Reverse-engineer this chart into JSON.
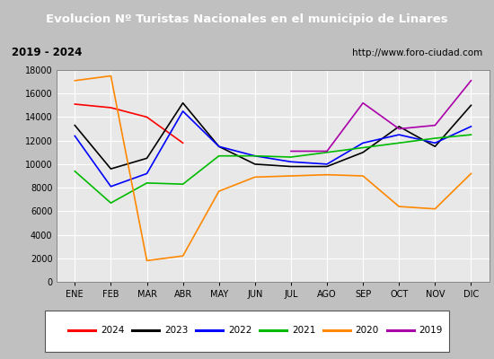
{
  "title": "Evolucion Nº Turistas Nacionales en el municipio de Linares",
  "subtitle_left": "2019 - 2024",
  "subtitle_right": "http://www.foro-ciudad.com",
  "months": [
    "ENE",
    "FEB",
    "MAR",
    "ABR",
    "MAY",
    "JUN",
    "JUL",
    "AGO",
    "SEP",
    "OCT",
    "NOV",
    "DIC"
  ],
  "series": {
    "2024": [
      15100,
      14800,
      14000,
      11800,
      null,
      null,
      null,
      null,
      null,
      null,
      null,
      null
    ],
    "2023": [
      13300,
      9600,
      10500,
      15200,
      11500,
      10000,
      9800,
      9800,
      11000,
      13200,
      11500,
      15000
    ],
    "2022": [
      12400,
      8100,
      9200,
      14500,
      11500,
      10700,
      10200,
      10000,
      11800,
      12500,
      11800,
      13200
    ],
    "2021": [
      9400,
      6700,
      8400,
      8300,
      10700,
      10700,
      10600,
      null,
      null,
      null,
      12200,
      12500
    ],
    "2020": [
      17100,
      17500,
      1800,
      2200,
      7700,
      8900,
      9000,
      9100,
      9000,
      6400,
      6200,
      9200
    ],
    "2019": [
      null,
      null,
      null,
      null,
      null,
      null,
      11100,
      11100,
      15200,
      13000,
      13300,
      17100
    ]
  },
  "colors": {
    "2024": "#ff0000",
    "2023": "#000000",
    "2022": "#0000ff",
    "2021": "#00bb00",
    "2020": "#ff8800",
    "2019": "#aa00aa"
  },
  "ylim": [
    0,
    18000
  ],
  "yticks": [
    0,
    2000,
    4000,
    6000,
    8000,
    10000,
    12000,
    14000,
    16000,
    18000
  ],
  "title_bg": "#4f81bd",
  "title_color": "#ffffff",
  "plot_bg": "#e8e8e8",
  "grid_color": "#ffffff",
  "outer_bg": "#c0c0c0"
}
